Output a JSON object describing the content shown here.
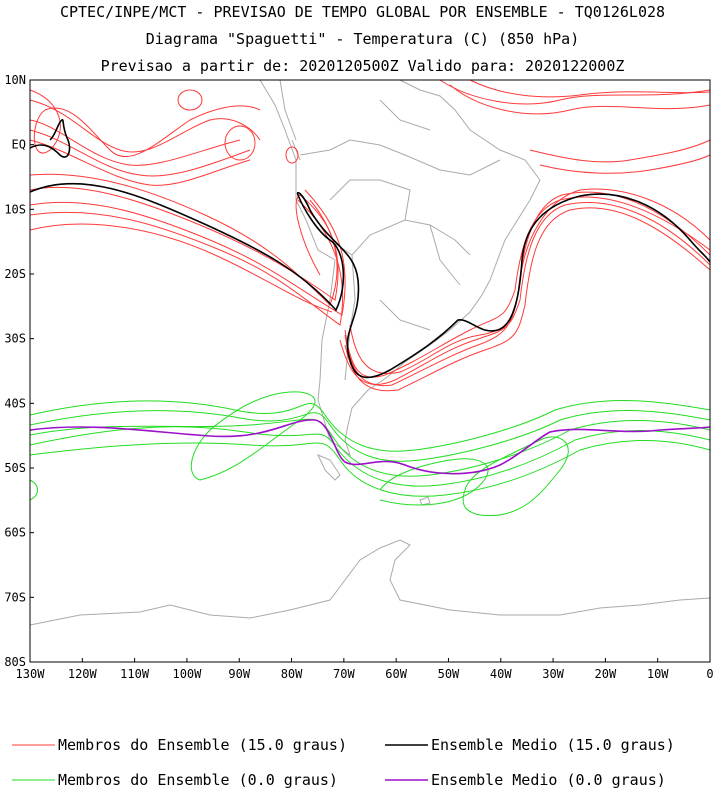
{
  "title_lines": [
    "CPTEC/INPE/MCT - PREVISAO DE TEMPO GLOBAL POR ENSEMBLE - TQ0126L028",
    "Diagrama \"Spaguetti\" - Temperatura (C) (850 hPa)",
    "Previsao a partir de: 2020120500Z  Valido para: 2020122000Z"
  ],
  "lat_labels": [
    "10N",
    "EQ",
    "10S",
    "20S",
    "30S",
    "40S",
    "50S",
    "60S",
    "70S",
    "80S"
  ],
  "lon_labels": [
    "130W",
    "120W",
    "110W",
    "100W",
    "90W",
    "80W",
    "70W",
    "60W",
    "50W",
    "40W",
    "30W",
    "20W",
    "10W",
    "0"
  ],
  "legend": [
    {
      "label": "Membros do Ensemble (15.0 graus)",
      "color": "#ff3a3a"
    },
    {
      "label": "Ensemble Medio (15.0 graus)",
      "color": "#000000"
    },
    {
      "label": "Membros do Ensemble (0.0 graus)",
      "color": "#22dd22"
    },
    {
      "label": "Ensemble Medio (0.0 graus)",
      "color": "#9b11c8"
    }
  ],
  "colors": {
    "coast": "#aaaaaa",
    "member15": "#ff3a3a",
    "mean15": "#000000",
    "member0": "#22dd22",
    "mean0": "#9b11c8"
  }
}
